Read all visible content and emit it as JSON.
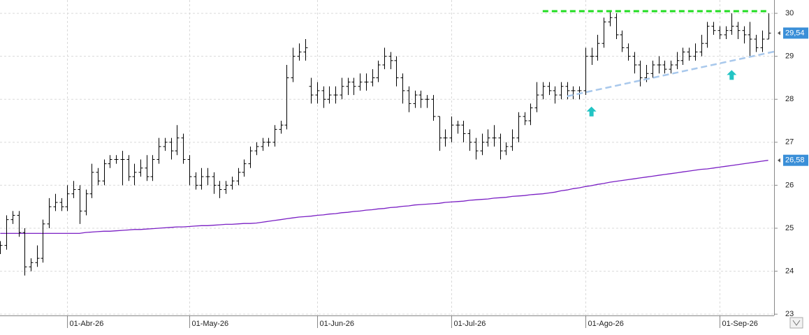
{
  "chart_data": {
    "type": "ohlc",
    "categories": [
      null,
      null,
      null,
      null,
      null,
      null,
      null,
      null,
      null,
      null,
      null,
      "01-Abr-26",
      null,
      null,
      null,
      null,
      null,
      null,
      null,
      null,
      null,
      null,
      null,
      null,
      null,
      null,
      null,
      null,
      null,
      null,
      null,
      "01-May-26",
      null,
      null,
      null,
      null,
      null,
      null,
      null,
      null,
      null,
      null,
      null,
      null,
      null,
      null,
      null,
      null,
      null,
      null,
      null,
      null,
      "01-Jun-26",
      null,
      null,
      null,
      null,
      null,
      null,
      null,
      null,
      null,
      null,
      null,
      null,
      null,
      null,
      null,
      null,
      null,
      null,
      null,
      null,
      null,
      "01-Jul-26",
      null,
      null,
      null,
      null,
      null,
      null,
      null,
      null,
      null,
      null,
      null,
      null,
      null,
      null,
      null,
      null,
      null,
      null,
      null,
      null,
      null,
      "01-Ago-26",
      null,
      null,
      null,
      null,
      null,
      null,
      null,
      null,
      null,
      null,
      null,
      null,
      null,
      null,
      null,
      null,
      null,
      null,
      null,
      null,
      null,
      "01-Sep-26",
      null,
      null,
      null,
      null,
      null,
      null,
      null,
      null
    ],
    "ohlc": {
      "color": "#000000",
      "label_color": "#3a8fd8",
      "open": [
        24.5,
        24.6,
        25.2,
        25.3,
        24.9,
        24.1,
        24.2,
        24.3,
        25.1,
        25.5,
        25.6,
        25.5,
        25.8,
        25.9,
        25.4,
        25.8,
        26.3,
        26.1,
        26.5,
        26.6,
        26.6,
        26.6,
        26.2,
        26.3,
        26.4,
        26.2,
        26.6,
        26.9,
        27.0,
        26.8,
        27.1,
        26.6,
        26.2,
        26.0,
        26.2,
        26.2,
        26.0,
        25.9,
        26.0,
        26.1,
        26.3,
        26.5,
        26.8,
        26.9,
        27.0,
        27.0,
        27.3,
        27.4,
        28.5,
        29.0,
        29.1,
        28.3,
        28.1,
        28.2,
        28.0,
        28.1,
        28.1,
        28.3,
        28.4,
        28.3,
        28.4,
        28.4,
        28.5,
        28.8,
        29.0,
        28.9,
        28.5,
        28.2,
        27.9,
        28.1,
        28.0,
        28.0,
        27.6,
        27.1,
        27.1,
        27.4,
        27.4,
        27.2,
        27.0,
        26.8,
        27.0,
        27.1,
        27.1,
        26.8,
        26.9,
        27.1,
        27.6,
        27.5,
        27.8,
        28.1,
        28.3,
        28.2,
        28.1,
        28.3,
        28.2,
        28.2,
        28.2,
        29.0,
        29.0,
        29.3,
        29.8,
        29.9,
        29.5,
        29.2,
        29.0,
        28.8,
        28.5,
        28.6,
        28.8,
        28.8,
        28.7,
        28.8,
        28.9,
        29.1,
        29.0,
        29.1,
        29.3,
        29.7,
        29.6,
        29.5,
        29.6,
        29.7,
        29.6,
        29.5,
        29.4,
        29.2,
        29.4
      ],
      "high": [
        24.7,
        25.3,
        25.4,
        25.4,
        25.0,
        24.3,
        24.6,
        25.2,
        25.7,
        25.8,
        25.7,
        26.0,
        26.1,
        26.0,
        25.9,
        26.5,
        26.4,
        26.6,
        26.7,
        26.7,
        26.8,
        26.7,
        26.5,
        26.6,
        26.7,
        26.7,
        27.1,
        27.1,
        27.1,
        27.4,
        27.2,
        26.7,
        26.3,
        26.4,
        26.4,
        26.3,
        26.1,
        26.1,
        26.2,
        26.4,
        26.6,
        26.9,
        27.0,
        27.1,
        27.1,
        27.4,
        27.5,
        28.8,
        29.2,
        29.3,
        29.4,
        28.5,
        28.4,
        28.3,
        28.3,
        28.3,
        28.5,
        28.5,
        28.5,
        28.6,
        28.6,
        28.7,
        28.9,
        29.2,
        29.1,
        29.0,
        28.6,
        28.3,
        28.2,
        28.2,
        28.1,
        28.1,
        27.6,
        27.3,
        27.6,
        27.5,
        27.5,
        27.3,
        27.1,
        27.2,
        27.3,
        27.4,
        27.2,
        27.0,
        27.3,
        27.7,
        27.7,
        27.9,
        28.4,
        28.4,
        28.4,
        28.3,
        28.4,
        28.4,
        28.3,
        28.3,
        29.2,
        29.2,
        29.5,
        29.9,
        30.05,
        30.0,
        29.6,
        29.3,
        29.1,
        28.9,
        28.8,
        28.9,
        29.0,
        28.9,
        28.9,
        29.1,
        29.2,
        29.2,
        29.3,
        29.5,
        29.8,
        29.8,
        29.7,
        29.7,
        30.0,
        29.8,
        29.7,
        29.8,
        29.5,
        29.6,
        30.0
      ],
      "low": [
        24.4,
        24.5,
        25.1,
        24.8,
        23.9,
        24.0,
        24.1,
        24.2,
        25.0,
        25.4,
        25.4,
        25.4,
        25.7,
        25.1,
        25.3,
        25.7,
        26.0,
        26.0,
        26.4,
        26.5,
        26.0,
        26.1,
        26.0,
        26.2,
        26.1,
        26.1,
        26.5,
        26.8,
        26.6,
        26.7,
        26.5,
        26.0,
        25.9,
        25.9,
        26.0,
        25.8,
        25.7,
        25.8,
        25.9,
        26.0,
        26.2,
        26.4,
        26.7,
        26.8,
        26.9,
        26.9,
        27.2,
        27.3,
        28.4,
        28.9,
        28.9,
        27.9,
        27.9,
        27.8,
        27.9,
        27.9,
        28.0,
        28.1,
        28.1,
        28.2,
        28.2,
        28.3,
        28.4,
        28.7,
        28.7,
        28.3,
        27.9,
        27.7,
        27.8,
        27.8,
        27.8,
        27.5,
        26.8,
        26.9,
        27.0,
        27.2,
        27.0,
        26.8,
        26.6,
        26.7,
        26.9,
        26.9,
        26.6,
        26.7,
        26.8,
        27.0,
        27.4,
        27.4,
        27.7,
        28.0,
        28.1,
        27.9,
        28.0,
        28.0,
        28.0,
        28.0,
        28.1,
        28.8,
        28.9,
        29.2,
        29.7,
        29.4,
        29.1,
        28.9,
        28.6,
        28.3,
        28.4,
        28.5,
        28.6,
        28.6,
        28.6,
        28.7,
        28.8,
        28.9,
        28.9,
        29.0,
        29.2,
        29.5,
        29.4,
        29.4,
        29.5,
        29.4,
        29.3,
        29.0,
        29.1,
        29.1,
        29.4
      ],
      "close": [
        24.6,
        25.2,
        25.3,
        24.9,
        24.1,
        24.2,
        24.3,
        25.1,
        25.5,
        25.6,
        25.5,
        25.8,
        25.9,
        25.4,
        25.8,
        26.3,
        26.1,
        26.5,
        26.6,
        26.6,
        26.6,
        26.2,
        26.3,
        26.4,
        26.2,
        26.6,
        26.9,
        27.0,
        26.8,
        27.1,
        26.6,
        26.2,
        26.0,
        26.2,
        26.2,
        26.0,
        25.9,
        26.0,
        26.1,
        26.3,
        26.5,
        26.8,
        26.9,
        27.0,
        27.0,
        27.3,
        27.4,
        28.5,
        29.0,
        29.1,
        29.2,
        28.1,
        28.2,
        28.0,
        28.1,
        28.1,
        28.3,
        28.4,
        28.3,
        28.4,
        28.4,
        28.5,
        28.8,
        29.0,
        28.9,
        28.5,
        28.2,
        27.9,
        28.1,
        28.0,
        28.0,
        27.6,
        27.1,
        27.1,
        27.4,
        27.4,
        27.2,
        27.0,
        26.8,
        27.0,
        27.1,
        27.1,
        26.8,
        26.9,
        27.1,
        27.6,
        27.5,
        27.8,
        28.1,
        28.3,
        28.2,
        28.1,
        28.3,
        28.2,
        28.2,
        28.2,
        29.0,
        29.0,
        29.3,
        29.8,
        29.9,
        29.5,
        29.2,
        29.0,
        28.8,
        28.5,
        28.6,
        28.8,
        28.8,
        28.7,
        28.8,
        28.9,
        29.1,
        29.0,
        29.1,
        29.3,
        29.7,
        29.6,
        29.5,
        29.6,
        29.7,
        29.6,
        29.5,
        29.4,
        29.2,
        29.4,
        29.54
      ],
      "value_label": "29,54"
    },
    "ma": {
      "color": "#7a1fc4",
      "label_color": "#3a8fd8",
      "values": [
        24.88,
        24.88,
        24.88,
        24.88,
        24.88,
        24.88,
        24.88,
        24.88,
        24.88,
        24.88,
        24.88,
        24.88,
        24.88,
        24.88,
        24.9,
        24.91,
        24.92,
        24.93,
        24.93,
        24.94,
        24.95,
        24.96,
        24.97,
        24.97,
        24.98,
        24.99,
        25.0,
        25.01,
        25.02,
        25.03,
        25.03,
        25.04,
        25.05,
        25.06,
        25.06,
        25.07,
        25.08,
        25.09,
        25.09,
        25.1,
        25.11,
        25.11,
        25.12,
        25.14,
        25.16,
        25.18,
        25.2,
        25.22,
        25.24,
        25.26,
        25.27,
        25.28,
        25.3,
        25.31,
        25.33,
        25.34,
        25.36,
        25.37,
        25.39,
        25.4,
        25.42,
        25.43,
        25.45,
        25.46,
        25.48,
        25.49,
        25.51,
        25.52,
        25.54,
        25.55,
        25.56,
        25.57,
        25.58,
        25.6,
        25.61,
        25.62,
        25.63,
        25.65,
        25.66,
        25.67,
        25.68,
        25.7,
        25.71,
        25.72,
        25.74,
        25.75,
        25.76,
        25.78,
        25.79,
        25.8,
        25.82,
        25.84,
        25.87,
        25.89,
        25.92,
        25.94,
        25.97,
        25.99,
        26.02,
        26.04,
        26.07,
        26.09,
        26.11,
        26.13,
        26.15,
        26.17,
        26.19,
        26.21,
        26.23,
        26.25,
        26.27,
        26.29,
        26.31,
        26.33,
        26.35,
        26.37,
        26.38,
        26.4,
        26.42,
        26.44,
        26.46,
        26.48,
        26.5,
        26.52,
        26.54,
        26.56,
        26.58
      ],
      "value_label": "26,58"
    },
    "ylim": [
      22.97,
      30.31
    ],
    "yticks": [
      23,
      24,
      25,
      26,
      27,
      28,
      29,
      30
    ],
    "grid": true,
    "annotations": [
      {
        "type": "hline",
        "x": [
          89,
          126
        ],
        "y": [
          30.05,
          30.05
        ],
        "color": "#22dd22"
      },
      {
        "type": "trendline",
        "x": [
          93,
          127
        ],
        "y": [
          28.07,
          29.11
        ],
        "color": "#a8c8ec"
      },
      {
        "type": "arrow",
        "x": [
          97
        ],
        "y": [
          27.7
        ],
        "color": "#22c4c4"
      },
      {
        "type": "arrow",
        "x": [
          120
        ],
        "y": [
          28.55
        ],
        "color": "#22c4c4"
      }
    ]
  }
}
